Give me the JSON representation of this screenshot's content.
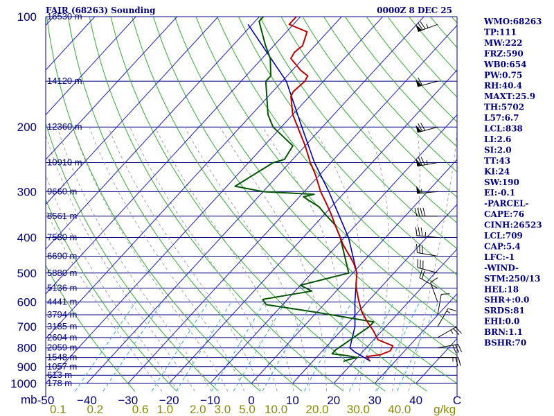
{
  "header": {
    "title_left": "FAIR (68263) Sounding",
    "title_right": "0000Z  8 DEC 25"
  },
  "colors": {
    "isobar": "#000080",
    "isotherm": "#1a1acc",
    "dry_adiabat": "#33aa33",
    "moist_adiabat": "#a0a0a0",
    "mixing_ratio": "#33aacc",
    "temperature": "#bb0000",
    "dewpoint": "#005500",
    "parcel": "#0000aa",
    "wind_barb": "#000000"
  },
  "chart_data": {
    "type": "skew-t",
    "title": "FAIR (68263) Sounding",
    "valid_time": "0000Z  8 DEC 25",
    "y_axis": {
      "unit": "mb",
      "range": [
        1000,
        100
      ],
      "ticks": [
        {
          "p": 100,
          "label": "100"
        },
        {
          "p": 200,
          "label": "200"
        },
        {
          "p": 300,
          "label": "300"
        },
        {
          "p": 400,
          "label": "400"
        },
        {
          "p": 500,
          "label": "500"
        },
        {
          "p": 600,
          "label": "600"
        },
        {
          "p": 700,
          "label": "700"
        },
        {
          "p": 800,
          "label": "800"
        },
        {
          "p": 900,
          "label": "900"
        },
        {
          "p": 1000,
          "label": "1000"
        }
      ]
    },
    "x_axis": {
      "unit": "C",
      "range": [
        -50,
        50
      ],
      "ticks": [
        {
          "t": -50,
          "label": "-50"
        },
        {
          "t": -40,
          "label": "−40"
        },
        {
          "t": -30,
          "label": "−30"
        },
        {
          "t": -20,
          "label": "−20"
        },
        {
          "t": -10,
          "label": "−10"
        },
        {
          "t": 0,
          "label": "0"
        },
        {
          "t": 10,
          "label": "10"
        },
        {
          "t": 20,
          "label": "20"
        },
        {
          "t": 30,
          "label": "30"
        },
        {
          "t": 40,
          "label": "40"
        },
        {
          "t": 50,
          "label": "C"
        }
      ]
    },
    "mixing_ratio_labels": [
      {
        "t": -47,
        "label": "0.1"
      },
      {
        "t": -38,
        "label": "0.2"
      },
      {
        "t": -27,
        "label": "0.6"
      },
      {
        "t": -21,
        "label": "1.0"
      },
      {
        "t": -13,
        "label": "2.0"
      },
      {
        "t": -7,
        "label": "3.0"
      },
      {
        "t": -1,
        "label": "5.0"
      },
      {
        "t": 6,
        "label": "10.0"
      },
      {
        "t": 16,
        "label": "20.0"
      },
      {
        "t": 26,
        "label": "30.0"
      },
      {
        "t": 36,
        "label": "40.0"
      },
      {
        "t": 47,
        "label": "g/kg"
      }
    ],
    "heights": [
      {
        "p": 100,
        "label": "16530 m"
      },
      {
        "p": 150,
        "label": "14120 m"
      },
      {
        "p": 200,
        "label": "12360 m"
      },
      {
        "p": 250,
        "label": "10910 m"
      },
      {
        "p": 300,
        "label": "9660 m"
      },
      {
        "p": 350,
        "label": "8561 m"
      },
      {
        "p": 400,
        "label": "7580 m"
      },
      {
        "p": 450,
        "label": "6690 m"
      },
      {
        "p": 500,
        "label": "5880 m"
      },
      {
        "p": 550,
        "label": "5136 m"
      },
      {
        "p": 600,
        "label": "4441 m"
      },
      {
        "p": 650,
        "label": "3794 m"
      },
      {
        "p": 700,
        "label": "3185 m"
      },
      {
        "p": 750,
        "label": "2604 m"
      },
      {
        "p": 800,
        "label": "2059 m"
      },
      {
        "p": 850,
        "label": "1548 m"
      },
      {
        "p": 900,
        "label": "1057 m"
      },
      {
        "p": 950,
        "label": "613 m"
      },
      {
        "p": 1000,
        "label": "178 m"
      }
    ],
    "temperature_profile": [
      {
        "p": 865,
        "t": 23.5
      },
      {
        "p": 850,
        "t": 22.5
      },
      {
        "p": 845,
        "t": 22.0
      },
      {
        "p": 835,
        "t": 25.0
      },
      {
        "p": 815,
        "t": 26.5
      },
      {
        "p": 790,
        "t": 26.0
      },
      {
        "p": 760,
        "t": 21.0
      },
      {
        "p": 720,
        "t": 18.0
      },
      {
        "p": 680,
        "t": 14.5
      },
      {
        "p": 640,
        "t": 11.0
      },
      {
        "p": 600,
        "t": 8.0
      },
      {
        "p": 560,
        "t": 5.0
      },
      {
        "p": 540,
        "t": 3.5
      },
      {
        "p": 500,
        "t": 1.0
      },
      {
        "p": 470,
        "t": -2.0
      },
      {
        "p": 450,
        "t": -4.5
      },
      {
        "p": 420,
        "t": -8.5
      },
      {
        "p": 400,
        "t": -11.0
      },
      {
        "p": 370,
        "t": -15.0
      },
      {
        "p": 345,
        "t": -18.5
      },
      {
        "p": 320,
        "t": -22.5
      },
      {
        "p": 300,
        "t": -26.0
      },
      {
        "p": 270,
        "t": -31.0
      },
      {
        "p": 250,
        "t": -35.0
      },
      {
        "p": 225,
        "t": -40.0
      },
      {
        "p": 200,
        "t": -46.0
      },
      {
        "p": 185,
        "t": -50.0
      },
      {
        "p": 165,
        "t": -54.5
      },
      {
        "p": 160,
        "t": -55.0
      },
      {
        "p": 150,
        "t": -54.5
      },
      {
        "p": 145,
        "t": -55.0
      },
      {
        "p": 140,
        "t": -58.0
      },
      {
        "p": 130,
        "t": -63.0
      },
      {
        "p": 125,
        "t": -63.5
      },
      {
        "p": 120,
        "t": -63.0
      },
      {
        "p": 110,
        "t": -65.0
      },
      {
        "p": 105,
        "t": -71.0
      },
      {
        "p": 100,
        "t": -71.0
      }
    ],
    "dewpoint_profile": [
      {
        "p": 870,
        "t": 17.5
      },
      {
        "p": 860,
        "t": 18.5
      },
      {
        "p": 850,
        "t": 20.0
      },
      {
        "p": 840,
        "t": 17.0
      },
      {
        "p": 830,
        "t": 13.0
      },
      {
        "p": 810,
        "t": 13.0
      },
      {
        "p": 700,
        "t": 16.0
      },
      {
        "p": 680,
        "t": 16.0
      },
      {
        "p": 640,
        "t": 0.0
      },
      {
        "p": 610,
        "t": -14.0
      },
      {
        "p": 590,
        "t": -16.0
      },
      {
        "p": 560,
        "t": -6.0
      },
      {
        "p": 540,
        "t": -10.0
      },
      {
        "p": 500,
        "t": -1.0
      },
      {
        "p": 400,
        "t": -11.0
      },
      {
        "p": 370,
        "t": -15.0
      },
      {
        "p": 345,
        "t": -20.0
      },
      {
        "p": 330,
        "t": -23.0
      },
      {
        "p": 315,
        "t": -27.5
      },
      {
        "p": 310,
        "t": -29.0
      },
      {
        "p": 305,
        "t": -27.0
      },
      {
        "p": 300,
        "t": -40.0
      },
      {
        "p": 290,
        "t": -48.0
      },
      {
        "p": 250,
        "t": -44.0
      },
      {
        "p": 245,
        "t": -42.0
      },
      {
        "p": 225,
        "t": -43.0
      },
      {
        "p": 200,
        "t": -52.0
      },
      {
        "p": 185,
        "t": -56.0
      },
      {
        "p": 150,
        "t": -64.0
      },
      {
        "p": 145,
        "t": -64.0
      },
      {
        "p": 130,
        "t": -68.0
      },
      {
        "p": 120,
        "t": -72.0
      },
      {
        "p": 110,
        "t": -76.0
      },
      {
        "p": 103,
        "t": -79.0
      },
      {
        "p": 100,
        "t": -79.0
      }
    ],
    "parcel_profile": [
      {
        "p": 870,
        "t": 24.0
      },
      {
        "p": 820,
        "t": 18.0
      },
      {
        "p": 800,
        "t": 16.0
      },
      {
        "p": 700,
        "t": 12.5
      },
      {
        "p": 600,
        "t": 7.0
      },
      {
        "p": 500,
        "t": 1.0
      },
      {
        "p": 400,
        "t": -9.0
      },
      {
        "p": 300,
        "t": -24.0
      },
      {
        "p": 250,
        "t": -34.0
      },
      {
        "p": 200,
        "t": -45.0
      },
      {
        "p": 150,
        "t": -59.0
      },
      {
        "p": 105,
        "t": -81.0
      }
    ],
    "wind_barbs": [
      {
        "p": 105,
        "dir": 250,
        "speed_kt": 75
      },
      {
        "p": 150,
        "dir": 255,
        "speed_kt": 60
      },
      {
        "p": 200,
        "dir": 255,
        "speed_kt": 70
      },
      {
        "p": 250,
        "dir": 260,
        "speed_kt": 75
      },
      {
        "p": 300,
        "dir": 265,
        "speed_kt": 55
      },
      {
        "p": 350,
        "dir": 270,
        "speed_kt": 40
      },
      {
        "p": 400,
        "dir": 275,
        "speed_kt": 35
      },
      {
        "p": 450,
        "dir": 280,
        "speed_kt": 30
      },
      {
        "p": 500,
        "dir": 285,
        "speed_kt": 30
      },
      {
        "p": 550,
        "dir": 300,
        "speed_kt": 20
      },
      {
        "p": 600,
        "dir": 340,
        "speed_kt": 10
      },
      {
        "p": 650,
        "dir": 10,
        "speed_kt": 10
      },
      {
        "p": 700,
        "dir": 30,
        "speed_kt": 15
      },
      {
        "p": 750,
        "dir": 60,
        "speed_kt": 25
      },
      {
        "p": 800,
        "dir": 80,
        "speed_kt": 30
      },
      {
        "p": 850,
        "dir": 90,
        "speed_kt": 25
      }
    ]
  },
  "indices": [
    {
      "key": "WMO",
      "text": "WMO:68263"
    },
    {
      "key": "TP",
      "text": "TP:111"
    },
    {
      "key": "MW",
      "text": "MW:222"
    },
    {
      "key": "FRZ",
      "text": "FRZ:590"
    },
    {
      "key": "WB0",
      "text": "WB0:654"
    },
    {
      "key": "PW",
      "text": "PW:0.75"
    },
    {
      "key": "RH",
      "text": "RH:40.4"
    },
    {
      "key": "MAXT",
      "text": "MAXT:25.9"
    },
    {
      "key": "TH",
      "text": "TH:5702"
    },
    {
      "key": "L57",
      "text": "L57:6.7"
    },
    {
      "key": "LCL",
      "text": "LCL:838"
    },
    {
      "key": "LI",
      "text": "LI:2.6"
    },
    {
      "key": "SI",
      "text": "SI:2.0"
    },
    {
      "key": "TT",
      "text": "TT:43"
    },
    {
      "key": "KI",
      "text": "KI:24"
    },
    {
      "key": "SW",
      "text": "SW:190"
    },
    {
      "key": "EI",
      "text": "EI:-0.1"
    },
    {
      "key": "PARCEL_HDR",
      "text": "-PARCEL-"
    },
    {
      "key": "CAPE",
      "text": "CAPE:76"
    },
    {
      "key": "CINH",
      "text": "CINH:26523"
    },
    {
      "key": "PLCL",
      "text": "LCL:709"
    },
    {
      "key": "CAP",
      "text": "CAP:5.4"
    },
    {
      "key": "LFC",
      "text": "LFC:-1"
    },
    {
      "key": "WIND_HDR",
      "text": "-WIND-"
    },
    {
      "key": "STM",
      "text": "STM:250/13"
    },
    {
      "key": "HEL",
      "text": "HEL:18"
    },
    {
      "key": "SHR",
      "text": "SHR+:0.0"
    },
    {
      "key": "SRDS",
      "text": "SRDS:81"
    },
    {
      "key": "EHI",
      "text": "EHI:0.0"
    },
    {
      "key": "BRN",
      "text": "BRN:1.1"
    },
    {
      "key": "BSHR",
      "text": "BSHR:70"
    }
  ],
  "axis_unit_label": "mb"
}
